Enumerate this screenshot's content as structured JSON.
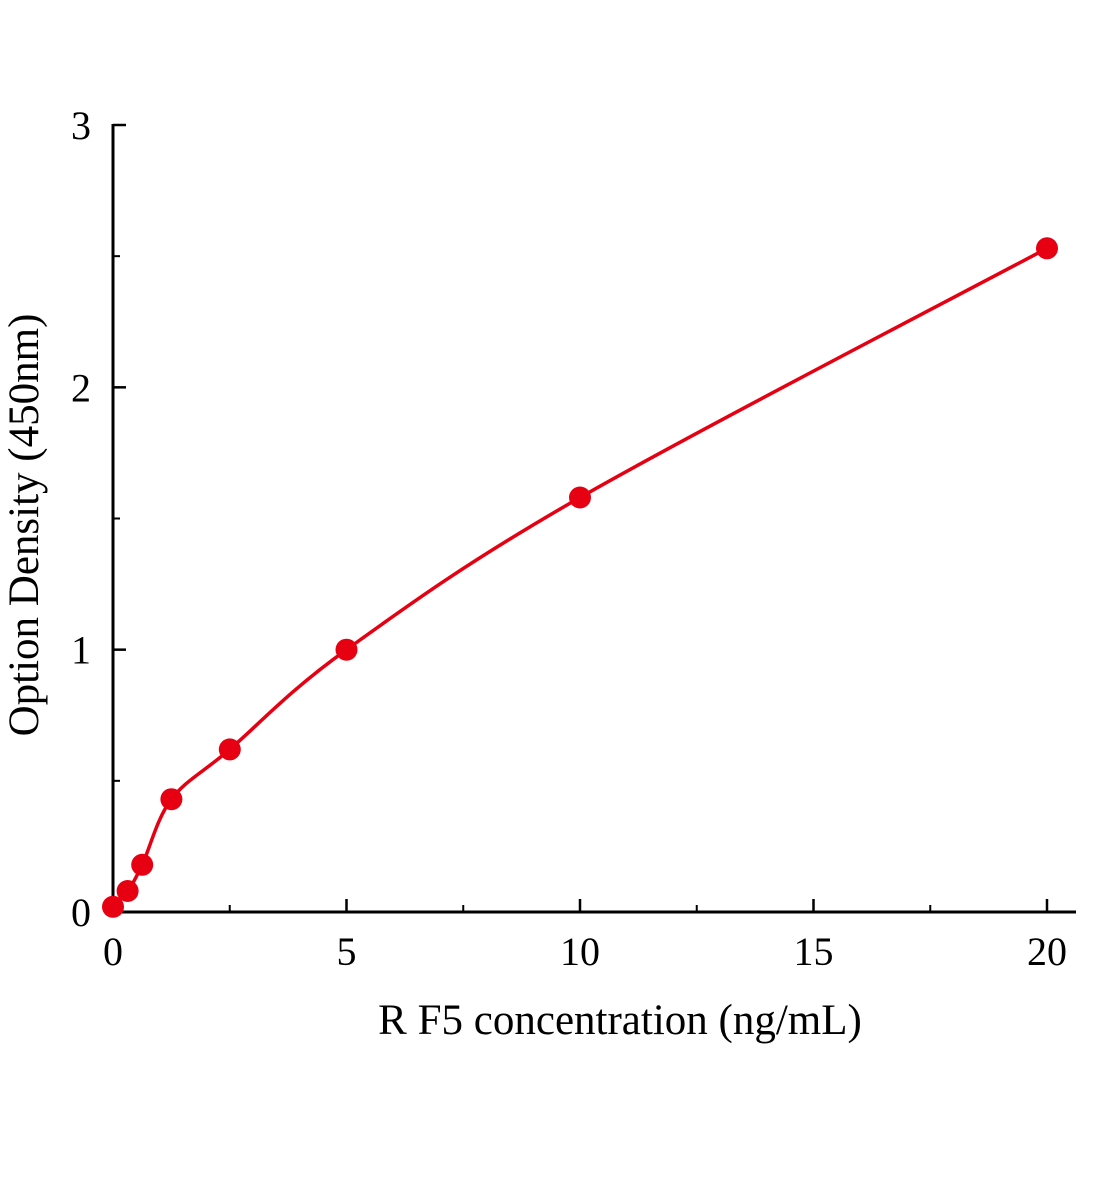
{
  "chart_data": {
    "type": "scatter",
    "subtype": "standard-curve-with-smooth-fit-line",
    "title": "",
    "xlabel": "R F5 concentration (ng/mL)",
    "ylabel": "Option Density (450nm)",
    "x": [
      0,
      0.313,
      0.625,
      1.25,
      2.5,
      5,
      10,
      20
    ],
    "y": [
      0.02,
      0.08,
      0.18,
      0.43,
      0.62,
      1.0,
      1.58,
      2.53
    ],
    "xlim": [
      0,
      20
    ],
    "ylim": [
      0,
      3
    ],
    "x_ticks": [
      0,
      5,
      10,
      15,
      20
    ],
    "y_ticks": [
      0,
      1,
      2,
      3
    ],
    "x_minor_ticks": [
      2.5,
      7.5,
      12.5,
      17.5
    ],
    "y_minor_ticks": [
      0.5,
      1.5,
      2.5
    ],
    "grid": false,
    "legend": null,
    "marker": "filled-circle",
    "colors": {
      "series": "#e60012",
      "axis": "#000000",
      "background": "#ffffff"
    }
  }
}
